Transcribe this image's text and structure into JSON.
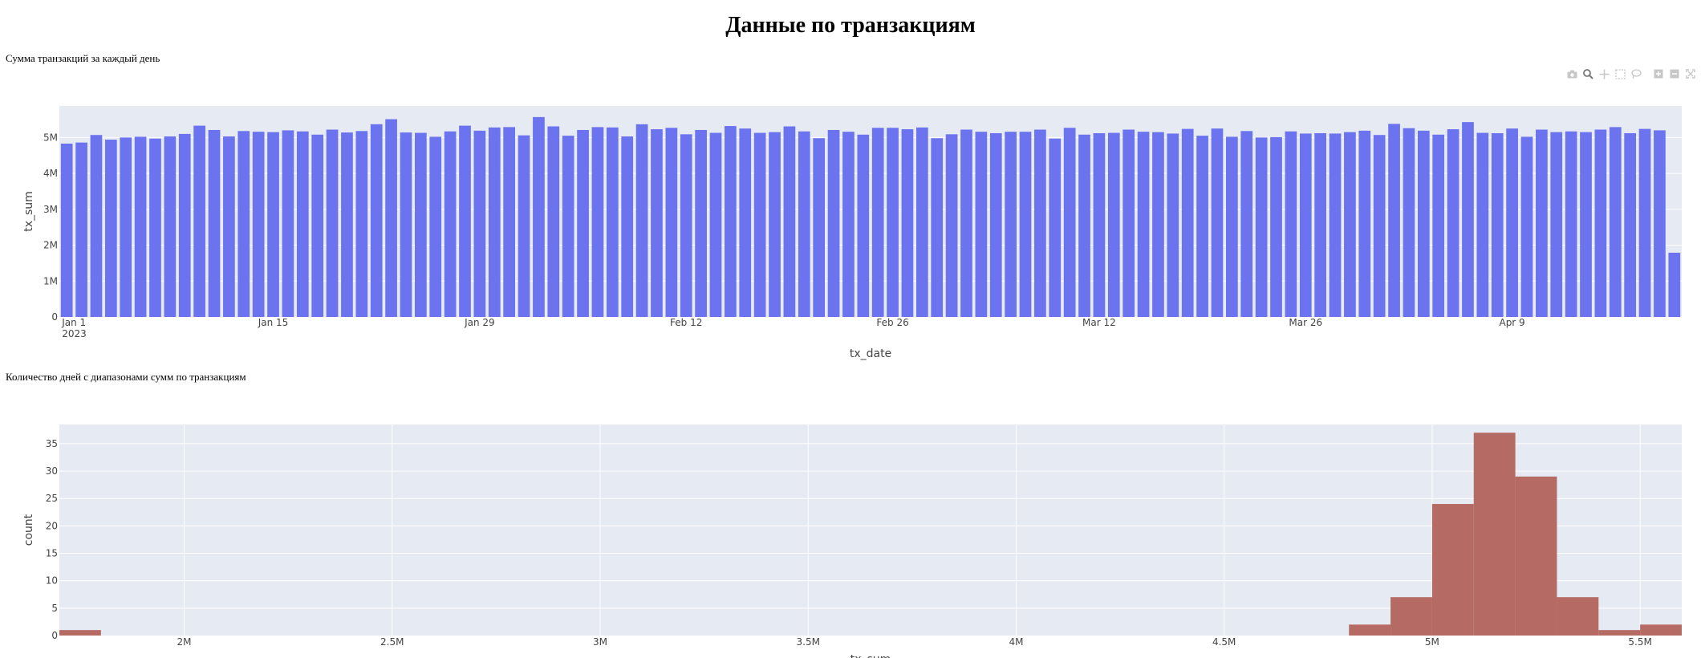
{
  "page": {
    "title": "Данные по транзакциям"
  },
  "charts_meta": {
    "daily": {
      "title": "Сумма транзакций за каждый день"
    },
    "hist": {
      "title": "Количество дней с диапазонами сумм по транзакциям"
    }
  },
  "modebar": {
    "icons": [
      "camera-icon",
      "zoom-icon",
      "pan-icon",
      "box-select-icon",
      "lasso-icon",
      "zoom-in-icon",
      "zoom-out-icon",
      "autoscale-icon"
    ]
  },
  "colors": {
    "bar": "#6c73ef",
    "hist": "#b56a63",
    "plot_bg": "#e6eaf3",
    "grid": "#ffffff"
  },
  "chart_data": [
    {
      "type": "bar",
      "title": "Сумма транзакций за каждый день",
      "xlabel": "tx_date",
      "ylabel": "tx_sum",
      "x_start": "2023-01-01",
      "x_tick_labels": [
        "Jan 1\n2023",
        "Jan 15",
        "Jan 29",
        "Feb 12",
        "Feb 26",
        "Mar 12",
        "Mar 26",
        "Apr 9"
      ],
      "x_tick_dates": [
        "2023-01-01",
        "2023-01-15",
        "2023-01-29",
        "2023-02-12",
        "2023-02-26",
        "2023-03-12",
        "2023-03-26",
        "2023-04-09"
      ],
      "y_tick_labels": [
        "0",
        "1M",
        "2M",
        "3M",
        "4M",
        "5M"
      ],
      "y_tick_values": [
        0,
        1000000,
        2000000,
        3000000,
        4000000,
        5000000
      ],
      "ylim": [
        0,
        5880000
      ],
      "grid": true,
      "values": [
        4830000,
        4860000,
        5070000,
        4940000,
        5000000,
        5020000,
        4970000,
        5030000,
        5100000,
        5330000,
        5210000,
        5030000,
        5180000,
        5160000,
        5150000,
        5200000,
        5170000,
        5080000,
        5220000,
        5140000,
        5180000,
        5370000,
        5510000,
        5140000,
        5130000,
        5020000,
        5170000,
        5330000,
        5190000,
        5280000,
        5290000,
        5060000,
        5570000,
        5310000,
        5050000,
        5210000,
        5290000,
        5280000,
        5030000,
        5370000,
        5230000,
        5270000,
        5090000,
        5210000,
        5130000,
        5320000,
        5250000,
        5130000,
        5150000,
        5310000,
        5170000,
        4980000,
        5210000,
        5160000,
        5080000,
        5270000,
        5270000,
        5230000,
        5280000,
        4980000,
        5090000,
        5220000,
        5160000,
        5120000,
        5160000,
        5160000,
        5220000,
        4970000,
        5270000,
        5080000,
        5120000,
        5130000,
        5220000,
        5160000,
        5150000,
        5110000,
        5240000,
        5050000,
        5250000,
        5020000,
        5180000,
        5000000,
        5010000,
        5170000,
        5110000,
        5120000,
        5110000,
        5150000,
        5190000,
        5070000,
        5380000,
        5260000,
        5190000,
        5080000,
        5230000,
        5430000,
        5130000,
        5120000,
        5250000,
        5020000,
        5220000,
        5150000,
        5170000,
        5150000,
        5220000,
        5290000,
        5120000,
        5240000,
        5200000,
        1790000
      ]
    },
    {
      "type": "bar",
      "subtype": "histogram",
      "title": "Количество дней с диапазонами сумм по транзакциям",
      "xlabel": "tx_sum",
      "ylabel": "count",
      "xlim": [
        1700000,
        5600000
      ],
      "ylim": [
        0,
        38.5
      ],
      "x_tick_labels": [
        "2M",
        "2.5M",
        "3M",
        "3.5M",
        "4M",
        "4.5M",
        "5M",
        "5.5M"
      ],
      "x_tick_values": [
        2000000,
        2500000,
        3000000,
        3500000,
        4000000,
        4500000,
        5000000,
        5500000
      ],
      "y_tick_labels": [
        "0",
        "5",
        "10",
        "15",
        "20",
        "25",
        "30",
        "35"
      ],
      "y_tick_values": [
        0,
        5,
        10,
        15,
        20,
        25,
        30,
        35
      ],
      "grid": true,
      "bin_starts": [
        1700000,
        4800000,
        4900000,
        5000000,
        5100000,
        5200000,
        5300000,
        5400000,
        5500000
      ],
      "bin_ends": [
        1800000,
        4900000,
        5000000,
        5100000,
        5200000,
        5300000,
        5400000,
        5500000,
        5600000
      ],
      "values": [
        1,
        2,
        7,
        24,
        37,
        29,
        7,
        1,
        2
      ]
    }
  ]
}
